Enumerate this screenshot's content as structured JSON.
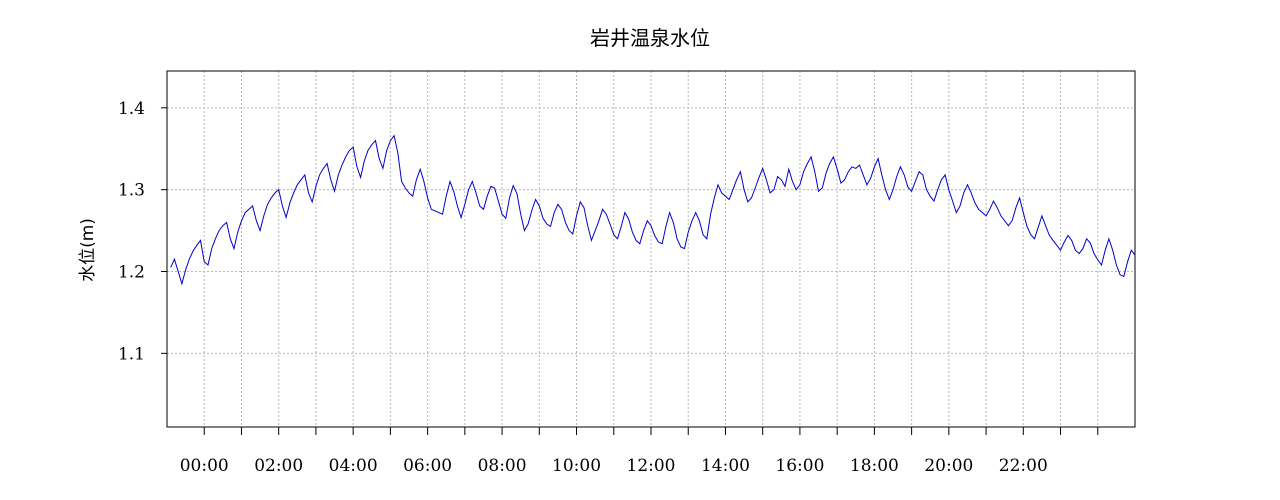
{
  "chart_data": {
    "type": "line",
    "title": "岩井温泉水位",
    "xlabel": "",
    "ylabel": "水位(m)",
    "x_tick_labels": [
      "00:00",
      "02:00",
      "04:00",
      "06:00",
      "08:00",
      "10:00",
      "12:00",
      "14:00",
      "16:00",
      "18:00",
      "20:00",
      "22:00"
    ],
    "y_tick_labels": [
      "1.1",
      "1.2",
      "1.3",
      "1.4"
    ],
    "y_ticks": [
      1.1,
      1.2,
      1.3,
      1.4
    ],
    "xlim": [
      -1,
      25
    ],
    "ylim": [
      1.01,
      1.445
    ],
    "grid": true,
    "line_color": "#0000cc",
    "series": [
      {
        "values": [
          [
            -0.9,
            1.205
          ],
          [
            -0.8,
            1.215
          ],
          [
            -0.7,
            1.2
          ],
          [
            -0.6,
            1.185
          ],
          [
            -0.5,
            1.202
          ],
          [
            -0.4,
            1.215
          ],
          [
            -0.3,
            1.225
          ],
          [
            -0.2,
            1.232
          ],
          [
            -0.1,
            1.238
          ],
          [
            0.0,
            1.212
          ],
          [
            0.1,
            1.208
          ],
          [
            0.2,
            1.228
          ],
          [
            0.3,
            1.24
          ],
          [
            0.4,
            1.25
          ],
          [
            0.5,
            1.256
          ],
          [
            0.6,
            1.26
          ],
          [
            0.7,
            1.24
          ],
          [
            0.8,
            1.228
          ],
          [
            0.9,
            1.248
          ],
          [
            1.0,
            1.262
          ],
          [
            1.1,
            1.272
          ],
          [
            1.2,
            1.276
          ],
          [
            1.3,
            1.28
          ],
          [
            1.4,
            1.262
          ],
          [
            1.5,
            1.25
          ],
          [
            1.6,
            1.268
          ],
          [
            1.7,
            1.282
          ],
          [
            1.8,
            1.29
          ],
          [
            1.9,
            1.296
          ],
          [
            2.0,
            1.3
          ],
          [
            2.1,
            1.28
          ],
          [
            2.2,
            1.266
          ],
          [
            2.3,
            1.284
          ],
          [
            2.4,
            1.296
          ],
          [
            2.5,
            1.306
          ],
          [
            2.6,
            1.312
          ],
          [
            2.7,
            1.318
          ],
          [
            2.8,
            1.296
          ],
          [
            2.9,
            1.285
          ],
          [
            3.0,
            1.304
          ],
          [
            3.1,
            1.318
          ],
          [
            3.2,
            1.326
          ],
          [
            3.3,
            1.332
          ],
          [
            3.4,
            1.312
          ],
          [
            3.5,
            1.298
          ],
          [
            3.6,
            1.318
          ],
          [
            3.7,
            1.33
          ],
          [
            3.8,
            1.34
          ],
          [
            3.9,
            1.348
          ],
          [
            4.0,
            1.352
          ],
          [
            4.1,
            1.328
          ],
          [
            4.2,
            1.315
          ],
          [
            4.3,
            1.335
          ],
          [
            4.4,
            1.348
          ],
          [
            4.5,
            1.355
          ],
          [
            4.6,
            1.36
          ],
          [
            4.7,
            1.338
          ],
          [
            4.8,
            1.326
          ],
          [
            4.9,
            1.348
          ],
          [
            5.0,
            1.36
          ],
          [
            5.1,
            1.366
          ],
          [
            5.2,
            1.345
          ],
          [
            5.3,
            1.31
          ],
          [
            5.4,
            1.302
          ],
          [
            5.5,
            1.296
          ],
          [
            5.6,
            1.292
          ],
          [
            5.7,
            1.312
          ],
          [
            5.8,
            1.325
          ],
          [
            5.9,
            1.31
          ],
          [
            6.0,
            1.29
          ],
          [
            6.1,
            1.276
          ],
          [
            6.2,
            1.274
          ],
          [
            6.3,
            1.272
          ],
          [
            6.4,
            1.27
          ],
          [
            6.5,
            1.292
          ],
          [
            6.6,
            1.31
          ],
          [
            6.7,
            1.298
          ],
          [
            6.8,
            1.28
          ],
          [
            6.9,
            1.266
          ],
          [
            7.0,
            1.282
          ],
          [
            7.1,
            1.3
          ],
          [
            7.2,
            1.31
          ],
          [
            7.3,
            1.296
          ],
          [
            7.4,
            1.28
          ],
          [
            7.5,
            1.276
          ],
          [
            7.6,
            1.292
          ],
          [
            7.7,
            1.304
          ],
          [
            7.8,
            1.302
          ],
          [
            7.9,
            1.286
          ],
          [
            8.0,
            1.27
          ],
          [
            8.1,
            1.265
          ],
          [
            8.2,
            1.29
          ],
          [
            8.3,
            1.305
          ],
          [
            8.4,
            1.295
          ],
          [
            8.5,
            1.27
          ],
          [
            8.6,
            1.25
          ],
          [
            8.7,
            1.258
          ],
          [
            8.8,
            1.275
          ],
          [
            8.9,
            1.288
          ],
          [
            9.0,
            1.28
          ],
          [
            9.1,
            1.265
          ],
          [
            9.2,
            1.258
          ],
          [
            9.3,
            1.255
          ],
          [
            9.4,
            1.272
          ],
          [
            9.5,
            1.282
          ],
          [
            9.6,
            1.276
          ],
          [
            9.7,
            1.26
          ],
          [
            9.8,
            1.25
          ],
          [
            9.9,
            1.246
          ],
          [
            10.0,
            1.268
          ],
          [
            10.1,
            1.285
          ],
          [
            10.2,
            1.278
          ],
          [
            10.3,
            1.256
          ],
          [
            10.4,
            1.238
          ],
          [
            10.5,
            1.25
          ],
          [
            10.6,
            1.262
          ],
          [
            10.7,
            1.276
          ],
          [
            10.8,
            1.27
          ],
          [
            10.9,
            1.258
          ],
          [
            11.0,
            1.245
          ],
          [
            11.1,
            1.24
          ],
          [
            11.2,
            1.255
          ],
          [
            11.3,
            1.272
          ],
          [
            11.4,
            1.264
          ],
          [
            11.5,
            1.248
          ],
          [
            11.6,
            1.238
          ],
          [
            11.7,
            1.234
          ],
          [
            11.8,
            1.25
          ],
          [
            11.9,
            1.262
          ],
          [
            12.0,
            1.256
          ],
          [
            12.1,
            1.244
          ],
          [
            12.2,
            1.236
          ],
          [
            12.3,
            1.234
          ],
          [
            12.4,
            1.255
          ],
          [
            12.5,
            1.272
          ],
          [
            12.6,
            1.26
          ],
          [
            12.7,
            1.24
          ],
          [
            12.8,
            1.23
          ],
          [
            12.9,
            1.228
          ],
          [
            13.0,
            1.248
          ],
          [
            13.1,
            1.262
          ],
          [
            13.2,
            1.272
          ],
          [
            13.3,
            1.262
          ],
          [
            13.4,
            1.245
          ],
          [
            13.5,
            1.24
          ],
          [
            13.6,
            1.27
          ],
          [
            13.7,
            1.29
          ],
          [
            13.8,
            1.306
          ],
          [
            13.9,
            1.296
          ],
          [
            14.0,
            1.292
          ],
          [
            14.1,
            1.288
          ],
          [
            14.2,
            1.3
          ],
          [
            14.3,
            1.312
          ],
          [
            14.4,
            1.322
          ],
          [
            14.5,
            1.3
          ],
          [
            14.6,
            1.285
          ],
          [
            14.7,
            1.29
          ],
          [
            14.8,
            1.302
          ],
          [
            14.9,
            1.315
          ],
          [
            15.0,
            1.326
          ],
          [
            15.1,
            1.312
          ],
          [
            15.2,
            1.296
          ],
          [
            15.3,
            1.3
          ],
          [
            15.4,
            1.316
          ],
          [
            15.5,
            1.312
          ],
          [
            15.6,
            1.304
          ],
          [
            15.7,
            1.325
          ],
          [
            15.8,
            1.31
          ],
          [
            15.9,
            1.3
          ],
          [
            16.0,
            1.306
          ],
          [
            16.1,
            1.322
          ],
          [
            16.2,
            1.332
          ],
          [
            16.3,
            1.34
          ],
          [
            16.4,
            1.322
          ],
          [
            16.5,
            1.298
          ],
          [
            16.6,
            1.302
          ],
          [
            16.7,
            1.32
          ],
          [
            16.8,
            1.332
          ],
          [
            16.9,
            1.34
          ],
          [
            17.0,
            1.325
          ],
          [
            17.1,
            1.308
          ],
          [
            17.2,
            1.312
          ],
          [
            17.3,
            1.322
          ],
          [
            17.4,
            1.328
          ],
          [
            17.5,
            1.326
          ],
          [
            17.6,
            1.33
          ],
          [
            17.7,
            1.318
          ],
          [
            17.8,
            1.306
          ],
          [
            17.9,
            1.314
          ],
          [
            18.0,
            1.328
          ],
          [
            18.1,
            1.338
          ],
          [
            18.2,
            1.318
          ],
          [
            18.3,
            1.3
          ],
          [
            18.4,
            1.288
          ],
          [
            18.5,
            1.3
          ],
          [
            18.6,
            1.316
          ],
          [
            18.7,
            1.328
          ],
          [
            18.8,
            1.318
          ],
          [
            18.9,
            1.303
          ],
          [
            19.0,
            1.298
          ],
          [
            19.1,
            1.31
          ],
          [
            19.2,
            1.322
          ],
          [
            19.3,
            1.318
          ],
          [
            19.4,
            1.3
          ],
          [
            19.5,
            1.292
          ],
          [
            19.6,
            1.286
          ],
          [
            19.7,
            1.3
          ],
          [
            19.8,
            1.312
          ],
          [
            19.9,
            1.318
          ],
          [
            20.0,
            1.3
          ],
          [
            20.1,
            1.286
          ],
          [
            20.2,
            1.272
          ],
          [
            20.3,
            1.28
          ],
          [
            20.4,
            1.296
          ],
          [
            20.5,
            1.306
          ],
          [
            20.6,
            1.296
          ],
          [
            20.7,
            1.284
          ],
          [
            20.8,
            1.276
          ],
          [
            20.9,
            1.272
          ],
          [
            21.0,
            1.268
          ],
          [
            21.1,
            1.276
          ],
          [
            21.2,
            1.286
          ],
          [
            21.3,
            1.278
          ],
          [
            21.4,
            1.268
          ],
          [
            21.5,
            1.262
          ],
          [
            21.6,
            1.256
          ],
          [
            21.7,
            1.262
          ],
          [
            21.8,
            1.278
          ],
          [
            21.9,
            1.29
          ],
          [
            22.0,
            1.272
          ],
          [
            22.1,
            1.255
          ],
          [
            22.2,
            1.245
          ],
          [
            22.3,
            1.24
          ],
          [
            22.4,
            1.254
          ],
          [
            22.5,
            1.268
          ],
          [
            22.6,
            1.256
          ],
          [
            22.7,
            1.244
          ],
          [
            22.8,
            1.238
          ],
          [
            22.9,
            1.232
          ],
          [
            23.0,
            1.226
          ],
          [
            23.1,
            1.236
          ],
          [
            23.2,
            1.244
          ],
          [
            23.3,
            1.238
          ],
          [
            23.4,
            1.226
          ],
          [
            23.5,
            1.222
          ],
          [
            23.6,
            1.228
          ],
          [
            23.7,
            1.24
          ],
          [
            23.8,
            1.235
          ],
          [
            23.9,
            1.222
          ],
          [
            24.0,
            1.214
          ],
          [
            24.1,
            1.208
          ],
          [
            24.2,
            1.226
          ],
          [
            24.3,
            1.24
          ],
          [
            24.4,
            1.226
          ],
          [
            24.5,
            1.208
          ],
          [
            24.6,
            1.196
          ],
          [
            24.7,
            1.194
          ],
          [
            24.8,
            1.212
          ],
          [
            24.9,
            1.226
          ],
          [
            25.0,
            1.22
          ]
        ]
      }
    ]
  }
}
